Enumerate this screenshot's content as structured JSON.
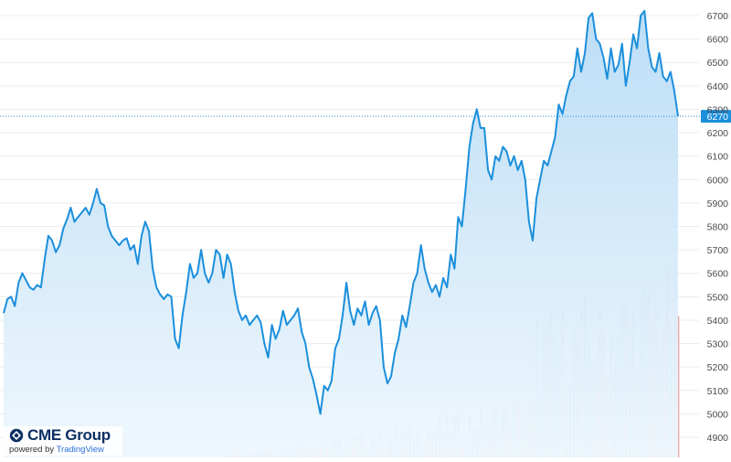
{
  "colors": {
    "line": "#1b8fdc",
    "area_top": "#b9dcf6",
    "area_bottom": "#eef7fd",
    "grid": "#ececec",
    "axis_text": "#4a4a4a",
    "price_badge": "#1b8fdc",
    "vol_up": "#7fc8c8",
    "vol_down": "#f0a3a3"
  },
  "branding": {
    "name": "CME Group",
    "powered": "powered by",
    "platform": "TradingView",
    "logo_icon": "cme-globe-icon"
  },
  "chart_data": {
    "type": "area",
    "y_ticks": [
      "4900",
      "5000",
      "5100",
      "5200",
      "5300",
      "5400",
      "5500",
      "5600",
      "5700",
      "5800",
      "5900",
      "6000",
      "6100",
      "6200",
      "6300",
      "6400",
      "6500",
      "6600",
      "6700"
    ],
    "ylim": [
      4880,
      6750
    ],
    "last_price": "6270",
    "grid": true,
    "price_series": [
      5430,
      5490,
      5500,
      5460,
      5560,
      5600,
      5570,
      5540,
      5530,
      5550,
      5540,
      5660,
      5760,
      5740,
      5690,
      5720,
      5790,
      5830,
      5880,
      5820,
      5840,
      5860,
      5880,
      5850,
      5900,
      5960,
      5900,
      5890,
      5800,
      5760,
      5740,
      5720,
      5740,
      5750,
      5700,
      5720,
      5640,
      5760,
      5820,
      5780,
      5620,
      5540,
      5510,
      5490,
      5510,
      5500,
      5320,
      5280,
      5420,
      5520,
      5640,
      5580,
      5600,
      5700,
      5600,
      5560,
      5600,
      5700,
      5680,
      5580,
      5680,
      5640,
      5520,
      5440,
      5400,
      5420,
      5380,
      5400,
      5420,
      5390,
      5300,
      5240,
      5380,
      5320,
      5360,
      5440,
      5380,
      5400,
      5420,
      5450,
      5350,
      5300,
      5200,
      5150,
      5080,
      5000,
      5120,
      5100,
      5140,
      5280,
      5320,
      5420,
      5560,
      5440,
      5380,
      5450,
      5420,
      5480,
      5380,
      5430,
      5460,
      5400,
      5200,
      5130,
      5160,
      5260,
      5320,
      5420,
      5370,
      5460,
      5560,
      5600,
      5720,
      5620,
      5560,
      5520,
      5550,
      5500,
      5580,
      5540,
      5680,
      5620,
      5840,
      5800,
      5960,
      6140,
      6240,
      6300,
      6220,
      6220,
      6040,
      6000,
      6100,
      6080,
      6140,
      6120,
      6060,
      6100,
      6040,
      6080,
      6000,
      5820,
      5740,
      5920,
      6000,
      6080,
      6060,
      6120,
      6180,
      6320,
      6280,
      6360,
      6420,
      6440,
      6560,
      6460,
      6540,
      6690,
      6710,
      6600,
      6580,
      6520,
      6430,
      6560,
      6460,
      6490,
      6580,
      6400,
      6500,
      6620,
      6560,
      6700,
      6720,
      6560,
      6480,
      6460,
      6540,
      6440,
      6420,
      6460,
      6380,
      6270
    ],
    "volume_up": [
      0,
      0,
      0,
      0,
      0,
      0,
      0,
      0,
      0,
      0,
      0,
      0,
      0,
      0,
      0,
      0,
      0,
      0,
      0,
      0,
      0,
      0,
      0,
      0,
      0,
      0,
      0,
      0,
      0,
      0,
      0,
      0,
      0,
      0,
      0,
      0,
      0,
      0,
      0,
      0,
      0,
      0,
      0,
      0,
      0,
      0,
      0,
      0,
      0,
      0,
      0,
      0,
      0,
      0,
      0,
      0,
      0,
      0,
      0,
      0,
      0,
      0,
      0,
      0,
      0,
      0,
      0,
      0,
      0,
      0,
      0,
      0,
      0,
      0,
      0,
      0,
      0,
      0,
      0,
      0,
      0,
      0,
      0,
      0,
      0,
      0,
      0,
      0,
      0,
      0,
      0,
      0,
      0,
      0,
      0,
      0,
      0,
      0,
      0,
      0,
      0,
      0,
      0,
      0,
      0,
      0,
      0,
      0,
      0,
      0,
      0,
      0,
      0,
      0,
      0,
      0,
      0,
      0,
      0,
      0,
      0,
      0,
      0,
      0,
      0,
      0,
      0,
      0,
      0,
      0,
      0,
      0,
      0,
      0,
      0,
      0,
      0,
      0,
      0,
      0,
      0,
      0,
      0,
      0,
      0,
      0,
      0,
      0,
      0,
      0,
      0,
      0,
      0,
      0,
      0,
      0,
      0,
      0,
      0,
      0,
      0,
      0,
      0,
      0,
      0,
      0,
      0,
      0,
      0,
      0,
      0,
      0,
      0,
      0,
      0,
      0,
      0,
      0,
      0,
      0,
      0,
      0,
      0,
      0,
      0,
      0
    ]
  }
}
